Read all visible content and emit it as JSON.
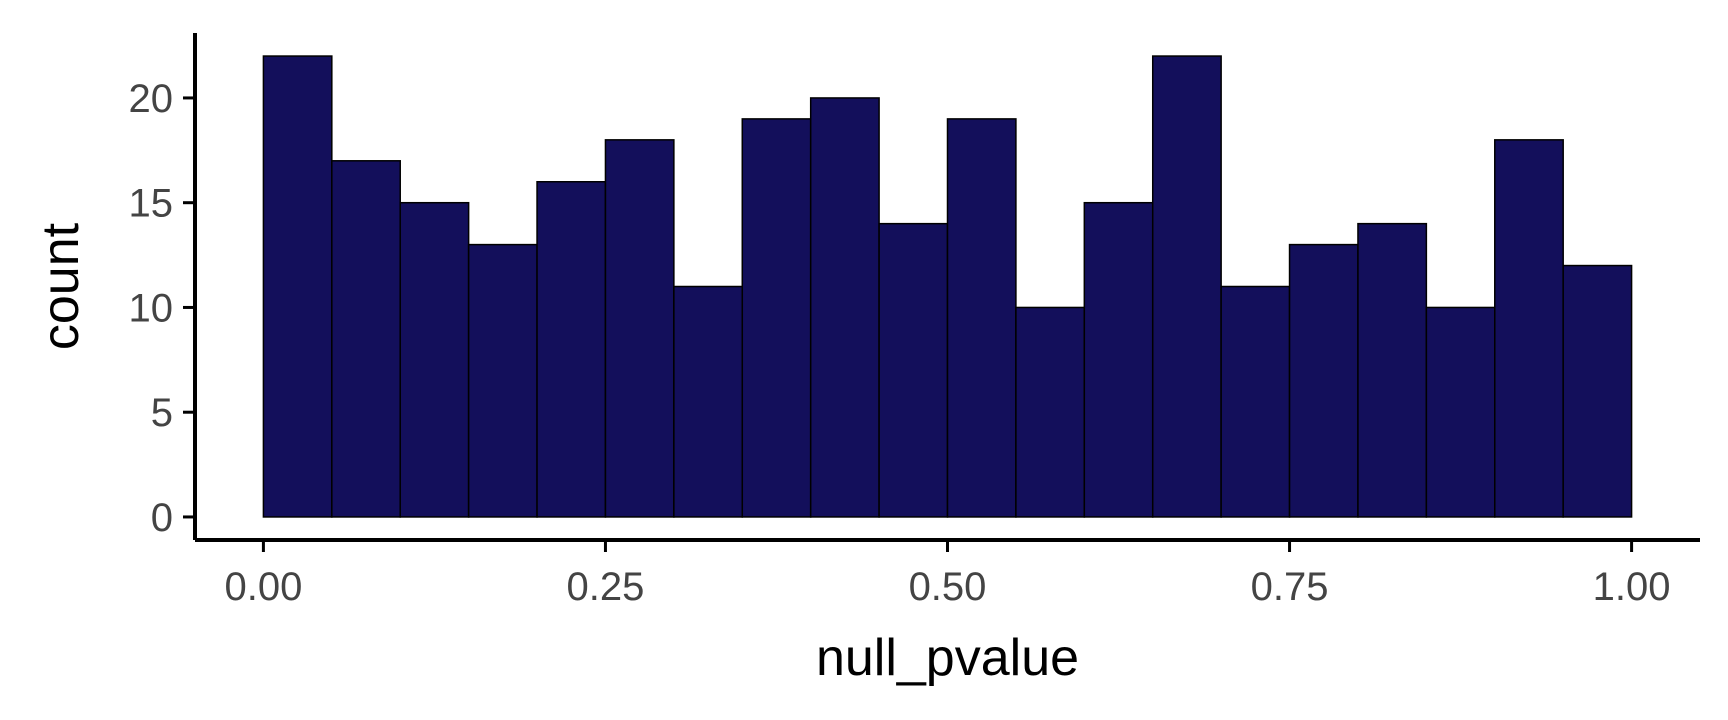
{
  "chart_data": {
    "type": "bar",
    "histogram": true,
    "xlabel": "null_pvalue",
    "ylabel": "count",
    "bin_edges": [
      0.0,
      0.05,
      0.1,
      0.15,
      0.2,
      0.25,
      0.3,
      0.35,
      0.4,
      0.45,
      0.5,
      0.55,
      0.6,
      0.65,
      0.7,
      0.75,
      0.8,
      0.85,
      0.9,
      0.95,
      1.0
    ],
    "values": [
      22,
      17,
      15,
      13,
      16,
      18,
      11,
      19,
      20,
      14,
      19,
      10,
      15,
      22,
      11,
      13,
      14,
      10,
      18,
      12
    ],
    "x_ticks": [
      0.0,
      0.25,
      0.5,
      0.75,
      1.0
    ],
    "x_tick_labels": [
      "0.00",
      "0.25",
      "0.50",
      "0.75",
      "1.00"
    ],
    "y_ticks": [
      0,
      5,
      10,
      15,
      20
    ],
    "y_tick_labels": [
      "0",
      "5",
      "10",
      "15",
      "20"
    ],
    "xlim": [
      -0.05,
      1.05
    ],
    "ylim": [
      -1.1,
      23.1
    ],
    "grid": false,
    "colors": {
      "bar_fill": "#130F5B",
      "bar_stroke": "#000000",
      "axis": "#000000",
      "tick_text": "#444444"
    }
  }
}
